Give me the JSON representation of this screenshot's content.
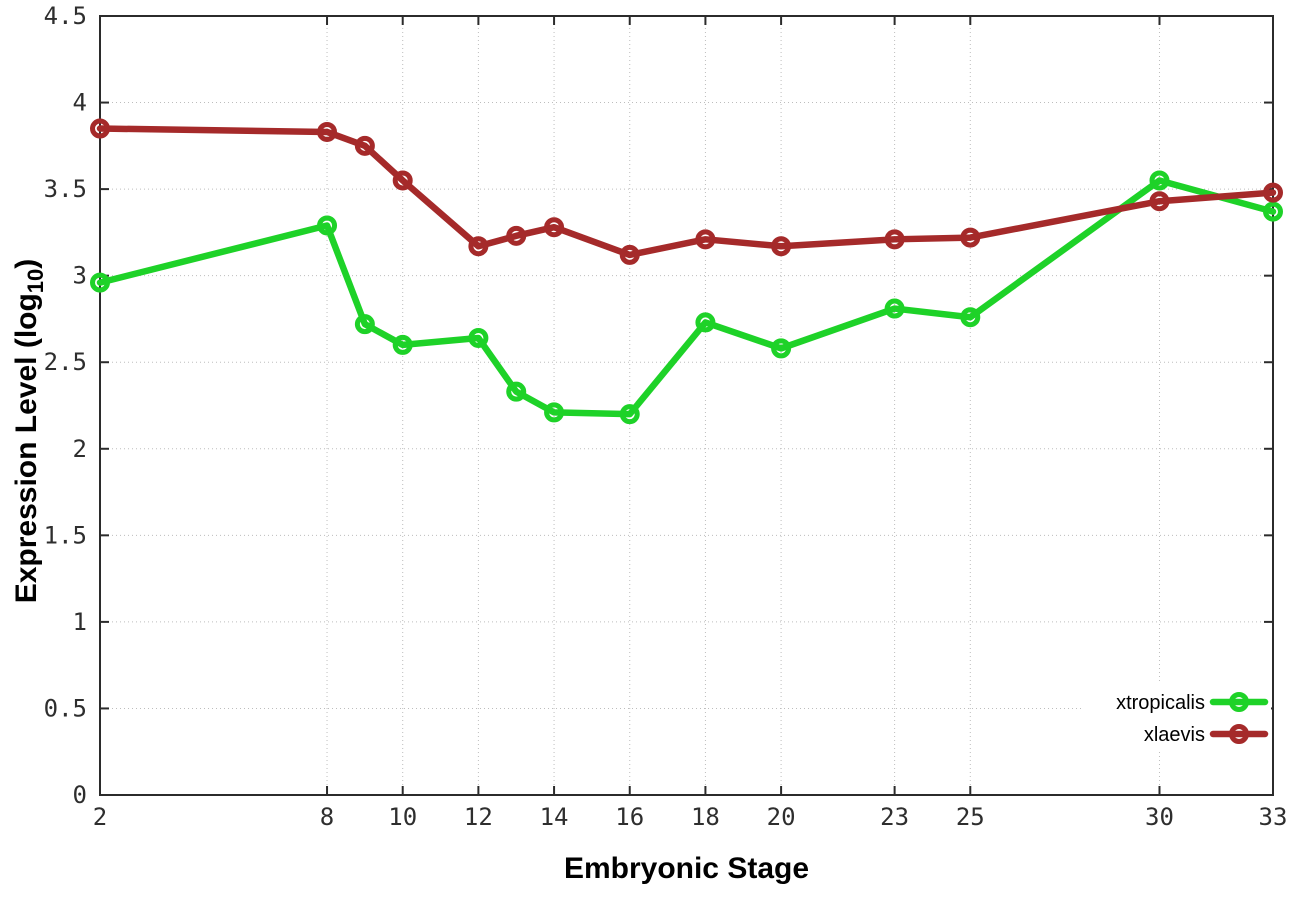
{
  "figure": {
    "background": "#ffffff",
    "axis_color": "#2b2b2b",
    "grid_color": "#bdbdbd",
    "tick_label_color": "#2e2e2e"
  },
  "chart_data": {
    "type": "line",
    "title": "",
    "xlabel": "Embryonic Stage",
    "ylabel": "Expression Level (log10)",
    "ylabel_parts": {
      "prefix": "Expression Level (log",
      "sub": "10",
      "suffix": ")"
    },
    "xlim": [
      2,
      33
    ],
    "ylim": [
      0,
      4.5
    ],
    "grid": true,
    "legend_position": "bottom-right",
    "x_tick_values": [
      2,
      8,
      10,
      12,
      14,
      16,
      18,
      20,
      23,
      25,
      30,
      33
    ],
    "x_tick_labels": [
      "2",
      "8",
      "10",
      "12",
      "14",
      "16",
      "18",
      "20",
      "23",
      "25",
      "30",
      "33"
    ],
    "y_tick_values": [
      0,
      0.5,
      1,
      1.5,
      2,
      2.5,
      3,
      3.5,
      4,
      4.5
    ],
    "y_tick_labels": [
      "0",
      "0.5",
      "1",
      "1.5",
      "2",
      "2.5",
      "3",
      "3.5",
      "4",
      "4.5"
    ],
    "x": [
      2,
      8,
      9,
      10,
      12,
      13,
      14,
      16,
      18,
      20,
      23,
      25,
      30,
      33
    ],
    "series": [
      {
        "name": "xtropicalis",
        "color": "#1ed228",
        "marker": "open-circle",
        "values": [
          2.96,
          3.29,
          2.72,
          2.6,
          2.64,
          2.33,
          2.21,
          2.2,
          2.73,
          2.58,
          2.81,
          2.76,
          3.55,
          3.37
        ]
      },
      {
        "name": "xlaevis",
        "color": "#a52a2a",
        "marker": "open-circle",
        "values": [
          3.85,
          3.83,
          3.75,
          3.55,
          3.17,
          3.23,
          3.28,
          3.12,
          3.21,
          3.17,
          3.21,
          3.22,
          3.43,
          3.48
        ]
      }
    ]
  }
}
